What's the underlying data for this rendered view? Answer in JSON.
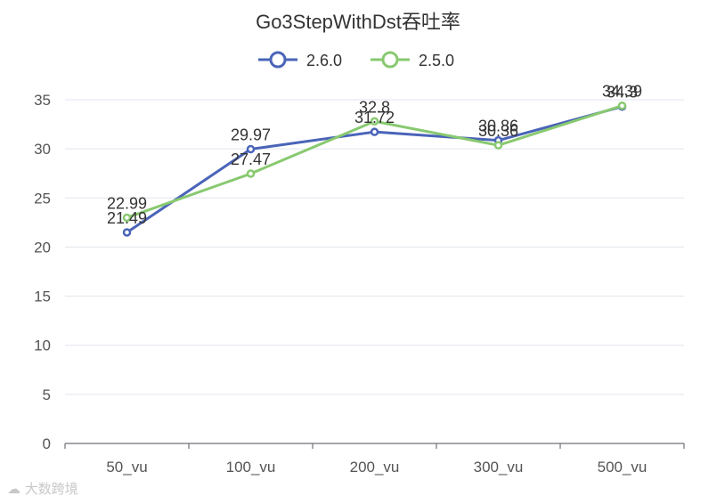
{
  "chart_data": {
    "type": "line",
    "title": "Go3StepWithDst吞吐率",
    "categories": [
      "50_vu",
      "100_vu",
      "200_vu",
      "300_vu",
      "500_vu"
    ],
    "series": [
      {
        "name": "2.6.0",
        "color": "#4a64b8",
        "values": [
          21.49,
          29.97,
          31.72,
          30.86,
          34.3
        ]
      },
      {
        "name": "2.5.0",
        "color": "#88c970",
        "values": [
          22.99,
          27.47,
          32.8,
          30.36,
          34.39
        ]
      }
    ],
    "ylim": [
      0,
      35
    ],
    "yticks": [
      0,
      5,
      10,
      15,
      20,
      25,
      30,
      35
    ],
    "grid": true,
    "legend": "top-center",
    "xlabel": "",
    "ylabel": ""
  },
  "watermark": {
    "icon": "cloud-icon",
    "text": "大数跨境"
  }
}
